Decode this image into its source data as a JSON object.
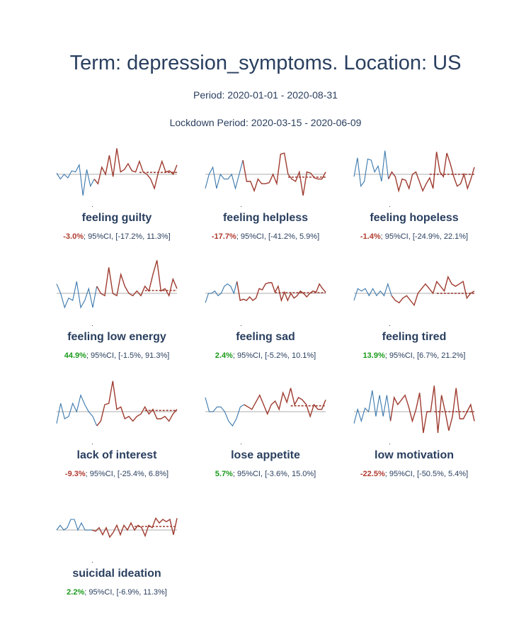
{
  "header": {
    "title": "Term: depression_symptoms. Location: US",
    "period": "Period: 2020-01-01 - 2020-08-31",
    "lockdown": "Lockdown Period: 2020-03-15 - 2020-06-09"
  },
  "colors": {
    "pre_lockdown": "#3a78ad",
    "post_lockdown": "#9e3b2f",
    "baseline": "#c8c8c8",
    "counterfactual": "#9e3b2f",
    "negative_change": "#b03a2e",
    "positive_change": "#1a9a1a"
  },
  "chart_data": [
    {
      "type": "line",
      "title": "feeling guilty",
      "change_pct": -3.0,
      "change_text": "-3.0%",
      "ci_text": "; 95%CI, [-17.2%, 11.3%]",
      "ylim": [
        -1.2,
        1.2
      ],
      "baseline": 0,
      "split_index": 10,
      "counterfactual": {
        "from_index": 22,
        "value": 0.08
      },
      "values": [
        0.05,
        -0.2,
        0.0,
        -0.15,
        0.15,
        0.1,
        0.4,
        -0.9,
        0.2,
        -0.5,
        -0.2,
        -0.4,
        0.3,
        0.0,
        0.8,
        -0.1,
        1.1,
        0.1,
        0.2,
        0.45,
        0.15,
        0.1,
        0.55,
        0.1,
        0.0,
        -0.2,
        -0.6,
        0.05,
        0.55,
        0.1,
        0.15,
        0.0,
        0.4
      ]
    },
    {
      "type": "line",
      "title": "feeling helpless",
      "change_pct": -17.7,
      "change_text": "-17.7%",
      "ci_text": "; 95%CI, [-41.2%, 5.9%]",
      "ylim": [
        -1.2,
        1.2
      ],
      "baseline": 0,
      "split_index": 10,
      "counterfactual": {
        "from_index": 22,
        "value": -0.12
      },
      "values": [
        -0.6,
        0.0,
        0.3,
        -0.6,
        0.0,
        -0.2,
        -0.2,
        0.0,
        -0.6,
        0.0,
        0.6,
        -0.3,
        -0.3,
        -0.7,
        -0.2,
        -0.4,
        -0.4,
        -0.35,
        0.0,
        -0.4,
        0.85,
        0.9,
        0.0,
        -0.2,
        -0.3,
        0.1,
        -0.9,
        0.1,
        0.05,
        -0.15,
        -0.2,
        -0.2,
        0.1
      ]
    },
    {
      "type": "line",
      "title": "feeling hopeless",
      "change_pct": -1.4,
      "change_text": "-1.4%",
      "ci_text": "; 95%CI, [-24.9%, 22.1%]",
      "ylim": [
        -1.2,
        1.2
      ],
      "baseline": 0,
      "split_index": 10,
      "counterfactual": {
        "from_index": 22,
        "value": 0.0
      },
      "values": [
        -0.1,
        0.7,
        -0.5,
        -0.3,
        0.65,
        0.6,
        0.1,
        0.35,
        -0.3,
        1.0,
        -0.2,
        0.1,
        -0.1,
        -0.7,
        -0.2,
        -0.25,
        -0.6,
        0.0,
        0.1,
        -0.3,
        -0.7,
        -0.4,
        -0.15,
        -0.6,
        0.95,
        0.1,
        -0.1,
        0.9,
        0.45,
        -0.1,
        -0.5,
        -0.4,
        0.0,
        -0.6,
        -0.2,
        0.3
      ]
    },
    {
      "type": "line",
      "title": "feeling low energy",
      "change_pct": 44.9,
      "change_text": "44.9%",
      "ci_text": "; 95%CI, [-1.5%, 91.3%]",
      "ylim": [
        -1.2,
        1.2
      ],
      "baseline": 0,
      "split_index": 10,
      "counterfactual": {
        "from_index": 22,
        "value": 0.12
      },
      "values": [
        0.4,
        0.0,
        -0.6,
        -0.2,
        -0.3,
        0.5,
        -0.6,
        -0.3,
        0.2,
        -0.6,
        0.3,
        0.0,
        -0.1,
        1.1,
        0.0,
        -0.1,
        0.8,
        0.3,
        0.0,
        -0.1,
        0.1,
        -0.1,
        0.3,
        0.1,
        0.8,
        1.4,
        0.1,
        0.2,
        -0.1,
        0.6,
        0.2
      ]
    },
    {
      "type": "line",
      "title": "feeling sad",
      "change_pct": 2.4,
      "change_text": "2.4%",
      "ci_text": "; 95%CI, [-5.2%, 10.1%]",
      "ylim": [
        -1.2,
        1.2
      ],
      "baseline": 0,
      "split_index": 10,
      "counterfactual": {
        "from_index": 22,
        "value": 0.03
      },
      "values": [
        -0.4,
        0.0,
        0.0,
        0.1,
        -0.1,
        0.0,
        0.3,
        0.4,
        0.3,
        0.0,
        0.5,
        -0.3,
        -0.25,
        -0.3,
        -0.15,
        -0.3,
        -0.2,
        0.2,
        0.15,
        0.4,
        0.45,
        0.45,
        0.05,
        0.3,
        -0.3,
        0.05,
        -0.3,
        0.0,
        -0.2,
        -0.1,
        0.1,
        0.0,
        -0.15,
        0.0,
        0.1,
        0.05,
        0.4,
        0.2,
        0.05
      ]
    },
    {
      "type": "line",
      "title": "feeling tired",
      "change_pct": 13.9,
      "change_text": "13.9%",
      "ci_text": "; 95%CI, [6.7%, 21.2%]",
      "ylim": [
        -1.2,
        1.2
      ],
      "baseline": 0,
      "split_index": 10,
      "counterfactual": {
        "from_index": 22,
        "value": 0.0
      },
      "values": [
        -0.3,
        0.2,
        0.1,
        0.2,
        -0.1,
        0.2,
        -0.1,
        0.1,
        -0.1,
        0.4,
        -0.1,
        -0.3,
        -0.4,
        -0.2,
        -0.1,
        -0.3,
        -0.5,
        0.0,
        0.2,
        0.4,
        0.2,
        0.0,
        0.5,
        0.3,
        0.1,
        0.7,
        0.4,
        0.3,
        0.4,
        0.5,
        -0.2,
        0.0,
        0.1
      ]
    },
    {
      "type": "line",
      "title": "lack of interest",
      "change_pct": -9.3,
      "change_text": "-9.3%",
      "ci_text": "; 95%CI, [-25.4%, 6.8%]",
      "ylim": [
        -1.2,
        1.2
      ],
      "baseline": 0,
      "split_index": 10,
      "counterfactual": {
        "from_index": 22,
        "value": 0.05
      },
      "values": [
        -0.5,
        0.35,
        -0.3,
        -0.2,
        0.35,
        0.0,
        0.7,
        0.3,
        0.0,
        -0.2,
        -0.6,
        -0.4,
        0.3,
        0.35,
        1.3,
        0.1,
        0.2,
        -0.3,
        -0.2,
        -0.4,
        -0.2,
        -0.1,
        0.2,
        -0.1,
        0.1,
        -0.3,
        -0.3,
        -0.2,
        -0.4,
        -0.1,
        0.1
      ]
    },
    {
      "type": "line",
      "title": "lose appetite",
      "change_pct": 5.7,
      "change_text": "5.7%",
      "ci_text": "; 95%CI, [-3.6%, 15.0%]",
      "ylim": [
        -1.2,
        1.2
      ],
      "baseline": 0,
      "split_index": 10,
      "counterfactual": {
        "from_index": 22,
        "value": 0.25
      },
      "values": [
        0.6,
        0.0,
        0.0,
        0.2,
        0.2,
        0.0,
        -0.4,
        -0.6,
        -0.3,
        0.2,
        0.3,
        0.2,
        0.1,
        0.4,
        0.7,
        0.3,
        -0.1,
        0.3,
        0.45,
        0.1,
        0.8,
        0.4,
        1.0,
        0.3,
        0.6,
        0.5,
        0.3,
        -0.2,
        0.3,
        0.1,
        0.1,
        0.5
      ]
    },
    {
      "type": "line",
      "title": "low motivation",
      "change_pct": -22.5,
      "change_text": "-22.5%",
      "ci_text": "; 95%CI, [-50.5%, 5.4%]",
      "ylim": [
        -1.2,
        1.2
      ],
      "baseline": 0,
      "split_index": 10,
      "counterfactual": {
        "from_index": 22,
        "value": 0.0
      },
      "values": [
        -0.5,
        0.1,
        -0.4,
        0.15,
        0.0,
        0.9,
        -0.2,
        0.7,
        -0.2,
        0.7,
        -0.4,
        0.6,
        0.3,
        0.5,
        0.7,
        0.2,
        -0.4,
        0.1,
        0.8,
        -0.9,
        0.0,
        0.0,
        1.1,
        -0.9,
        0.7,
        0.0,
        -0.8,
        -0.2,
        1.0,
        -0.3,
        -0.3,
        0.0,
        0.3,
        -0.4
      ]
    },
    {
      "type": "line",
      "title": "suicidal ideation",
      "change_pct": 2.2,
      "change_text": "2.2%",
      "ci_text": "; 95%CI, [-6.9%, 11.3%]",
      "ylim": [
        -1.2,
        1.2
      ],
      "baseline": 0,
      "split_index": 10,
      "counterfactual": {
        "from_index": 22,
        "value": 0.15
      },
      "values": [
        0.0,
        0.2,
        0.0,
        0.1,
        0.45,
        0.45,
        0.0,
        0.3,
        0.0,
        0.0,
        0.0,
        -0.05,
        0.1,
        -0.2,
        0.1,
        -0.3,
        -0.1,
        0.2,
        -0.2,
        0.2,
        0.0,
        0.3,
        0.0,
        0.2,
        0.1,
        -0.25,
        0.2,
        0.1,
        0.5,
        0.3,
        0.45,
        0.35,
        0.45,
        -0.2,
        0.5
      ]
    }
  ]
}
